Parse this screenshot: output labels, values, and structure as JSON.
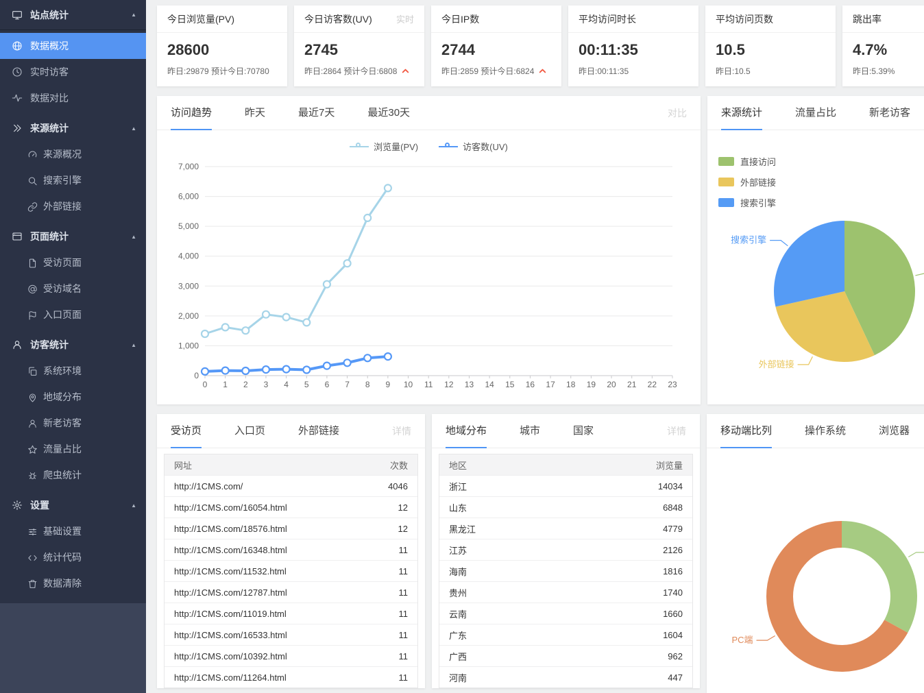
{
  "colors": {
    "accent": "#4f95f5",
    "trend_up": "#f2563f",
    "sidebar_active": "#5594f2"
  },
  "sidebar": {
    "items": [
      {
        "label": "站点统计",
        "icon": "monitor",
        "header": true,
        "divider": true
      },
      {
        "label": "数据概况",
        "icon": "globe",
        "active": true
      },
      {
        "label": "实时访客",
        "icon": "clock"
      },
      {
        "label": "数据对比",
        "icon": "pulse"
      },
      {
        "label": "来源统计",
        "icon": "chevrons",
        "header": true
      },
      {
        "label": "来源概况",
        "icon": "gauge",
        "sub": true
      },
      {
        "label": "搜索引擎",
        "icon": "search",
        "sub": true
      },
      {
        "label": "外部链接",
        "icon": "link",
        "sub": true
      },
      {
        "label": "页面统计",
        "icon": "window",
        "header": true
      },
      {
        "label": "受访页面",
        "icon": "file",
        "sub": true
      },
      {
        "label": "受访域名",
        "icon": "at",
        "sub": true
      },
      {
        "label": "入口页面",
        "icon": "flag",
        "sub": true
      },
      {
        "label": "访客统计",
        "icon": "user",
        "header": true
      },
      {
        "label": "系统环境",
        "icon": "layers",
        "sub": true
      },
      {
        "label": "地域分布",
        "icon": "pin",
        "sub": true
      },
      {
        "label": "新老访客",
        "icon": "user2",
        "sub": true
      },
      {
        "label": "流量占比",
        "icon": "star",
        "sub": true
      },
      {
        "label": "爬虫统计",
        "icon": "bug",
        "sub": true
      },
      {
        "label": "设置",
        "icon": "gear",
        "header": true
      },
      {
        "label": "基础设置",
        "icon": "sliders",
        "sub": true
      },
      {
        "label": "统计代码",
        "icon": "code",
        "sub": true
      },
      {
        "label": "数据清除",
        "icon": "trash",
        "sub": true
      }
    ]
  },
  "stat_cards": [
    {
      "title": "今日浏览量(PV)",
      "badge": "",
      "value": "28600",
      "footer": "昨日:29879 预计今日:70780",
      "trend": ""
    },
    {
      "title": "今日访客数(UV)",
      "badge": "实时",
      "value": "2745",
      "footer": "昨日:2864 预计今日:6808",
      "trend": "up"
    },
    {
      "title": "今日IP数",
      "badge": "",
      "value": "2744",
      "footer": "昨日:2859 预计今日:6824",
      "trend": "up"
    },
    {
      "title": "平均访问时长",
      "badge": "",
      "value": "00:11:35",
      "footer": "昨日:00:11:35",
      "trend": ""
    },
    {
      "title": "平均访问页数",
      "badge": "",
      "value": "10.5",
      "footer": "昨日:10.5",
      "trend": ""
    },
    {
      "title": "跳出率",
      "badge": "",
      "value": "4.7%",
      "footer": "昨日:5.39%",
      "trend": ""
    }
  ],
  "trend_panel": {
    "tabs": [
      {
        "label": "访问趋势",
        "active": true
      },
      {
        "label": "昨天"
      },
      {
        "label": "最近7天"
      },
      {
        "label": "最近30天"
      }
    ],
    "action": "对比"
  },
  "source_panel": {
    "tabs": [
      {
        "label": "来源统计",
        "active": true
      },
      {
        "label": "流量占比"
      },
      {
        "label": "新老访客"
      }
    ]
  },
  "pages_panel": {
    "tabs": [
      {
        "label": "受访页",
        "active": true
      },
      {
        "label": "入口页"
      },
      {
        "label": "外部链接"
      }
    ],
    "action": "详情",
    "columns": {
      "name": "网址",
      "value": "次数"
    },
    "rows": [
      {
        "name": "http://1CMS.com/",
        "value": "4046"
      },
      {
        "name": "http://1CMS.com/16054.html",
        "value": "12"
      },
      {
        "name": "http://1CMS.com/18576.html",
        "value": "12"
      },
      {
        "name": "http://1CMS.com/16348.html",
        "value": "11"
      },
      {
        "name": "http://1CMS.com/11532.html",
        "value": "11"
      },
      {
        "name": "http://1CMS.com/12787.html",
        "value": "11"
      },
      {
        "name": "http://1CMS.com/11019.html",
        "value": "11"
      },
      {
        "name": "http://1CMS.com/16533.html",
        "value": "11"
      },
      {
        "name": "http://1CMS.com/10392.html",
        "value": "11"
      },
      {
        "name": "http://1CMS.com/11264.html",
        "value": "11"
      }
    ]
  },
  "region_panel": {
    "tabs": [
      {
        "label": "地域分布",
        "active": true
      },
      {
        "label": "城市"
      },
      {
        "label": "国家"
      }
    ],
    "action": "详情",
    "columns": {
      "name": "地区",
      "value": "浏览量"
    },
    "rows": [
      {
        "name": "浙江",
        "value": "14034"
      },
      {
        "name": "山东",
        "value": "6848"
      },
      {
        "name": "黑龙江",
        "value": "4779"
      },
      {
        "name": "江苏",
        "value": "2126"
      },
      {
        "name": "海南",
        "value": "1816"
      },
      {
        "name": "贵州",
        "value": "1740"
      },
      {
        "name": "云南",
        "value": "1660"
      },
      {
        "name": "广东",
        "value": "1604"
      },
      {
        "name": "广西",
        "value": "962"
      },
      {
        "name": "河南",
        "value": "447"
      }
    ]
  },
  "device_panel": {
    "tabs": [
      {
        "label": "移动端比列",
        "active": true
      },
      {
        "label": "操作系统"
      },
      {
        "label": "浏览器"
      }
    ]
  },
  "chart_data": [
    {
      "id": "visit_trend",
      "type": "line",
      "title": "访问趋势",
      "x": [
        0,
        1,
        2,
        3,
        4,
        5,
        6,
        7,
        8,
        9,
        10,
        11,
        12,
        13,
        14,
        15,
        16,
        17,
        18,
        19,
        20,
        21,
        22,
        23
      ],
      "xlabel": "",
      "ylabel": "",
      "ylim": [
        0,
        7000
      ],
      "ytick_step": 1000,
      "grid": true,
      "legend_position": "top",
      "series": [
        {
          "name": "浏览量(PV)",
          "color": "#a6d4e8",
          "width": 3,
          "values": [
            1400,
            1620,
            1510,
            2050,
            1960,
            1780,
            3060,
            3760,
            5280,
            6280
          ]
        },
        {
          "name": "访客数(UV)",
          "color": "#5598f7",
          "width": 4,
          "values": [
            140,
            170,
            160,
            205,
            215,
            195,
            330,
            430,
            590,
            640
          ]
        }
      ]
    },
    {
      "id": "source_share",
      "type": "pie",
      "title": "来源统计",
      "legend_position": "top-left",
      "slices": [
        {
          "label": "直接访问",
          "value": 43,
          "color": "#9dc26e"
        },
        {
          "label": "外部链接",
          "value": 28.5,
          "color": "#e9c65c"
        },
        {
          "label": "搜索引擎",
          "value": 28.5,
          "color": "#559bf5"
        }
      ]
    },
    {
      "id": "device_share",
      "type": "pie",
      "title": "移动端比列",
      "inner_radius": 0.65,
      "slices": [
        {
          "label": "",
          "value": 33,
          "color": "#a6cb82"
        },
        {
          "label": "PC端",
          "value": 67,
          "color": "#e08a5a"
        }
      ]
    }
  ]
}
